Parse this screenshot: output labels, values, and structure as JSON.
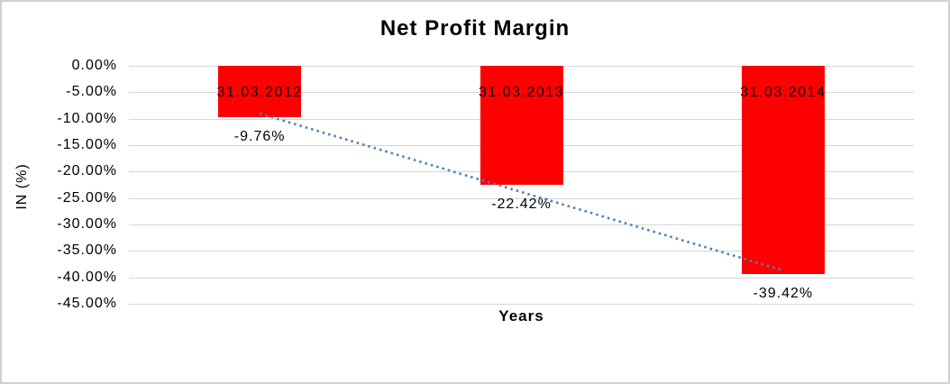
{
  "chart_data": {
    "type": "bar",
    "title": "Net Profit Margin",
    "xlabel": "Years",
    "ylabel": "IN (%)",
    "categories": [
      "31.03.2012",
      "31.03.2013",
      "31.03.2014"
    ],
    "values": [
      -9.76,
      -22.42,
      -39.42
    ],
    "data_labels": [
      "-9.76%",
      "-22.42%",
      "-39.42%"
    ],
    "y_ticks": [
      "0.00%",
      "-5.00%",
      "-10.00%",
      "-15.00%",
      "-20.00%",
      "-25.00%",
      "-30.00%",
      "-35.00%",
      "-40.00%",
      "-45.00%"
    ],
    "ylim": [
      0,
      -45
    ],
    "y_tick_step": -5,
    "grid": true,
    "legend": false,
    "bar_color": "#FF0000",
    "gridline_color": "#D6D6D6",
    "text_color": "#000000",
    "trendline": {
      "type": "linear",
      "style": "dotted",
      "color": "#4F81BD",
      "endpoints_value": [
        -9.04,
        -38.7
      ]
    }
  }
}
